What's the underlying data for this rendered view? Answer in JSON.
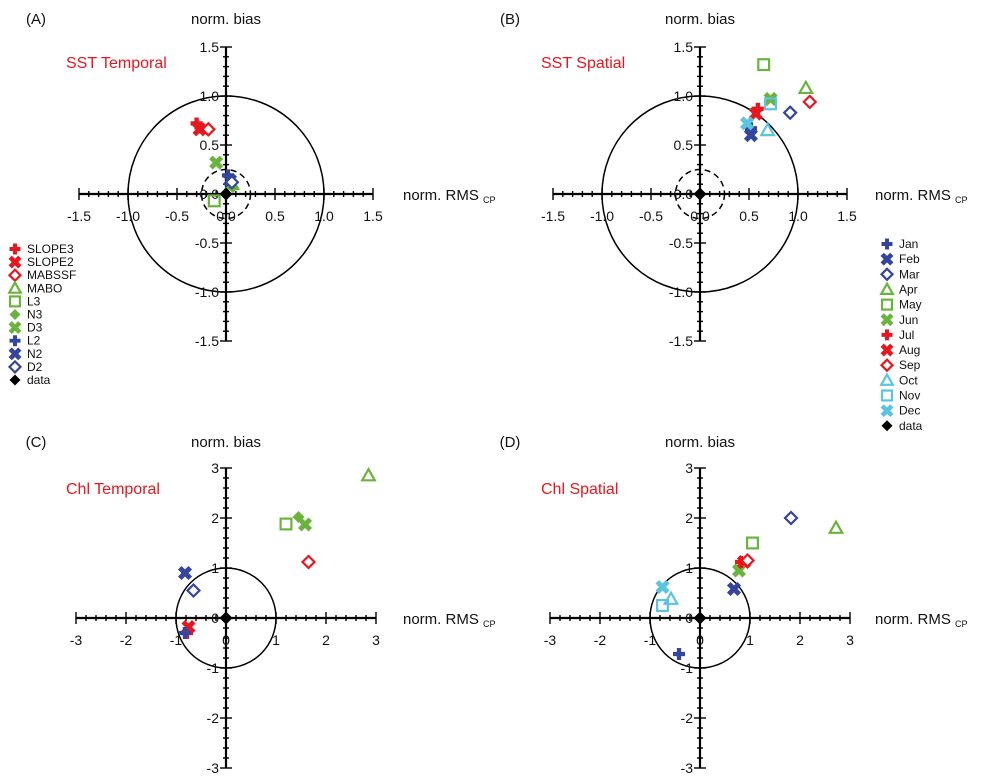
{
  "chart_data": [
    {
      "type": "scatter",
      "panel_label": "(A)",
      "title": "SST Temporal",
      "xlabel": "norm. RMS",
      "xlabel_sub": "CP",
      "ylabel": "norm. bias",
      "xlim": [
        -1.5,
        1.5
      ],
      "ylim": [
        -1.5,
        1.5
      ],
      "ticks": [
        "-1.5",
        "-1.0",
        "-0.5",
        "0.0",
        "0.5",
        "1.0",
        "1.5"
      ],
      "circles": [
        1.0,
        0.25
      ],
      "legend_placement": "left",
      "legend": [
        "SLOPE3",
        "SLOPE2",
        "MABSSF",
        "MABO",
        "L3",
        "N3",
        "D3",
        "L2",
        "N2",
        "D2",
        "data"
      ],
      "series": [
        {
          "name": "SLOPE3",
          "x": [
            -0.3
          ],
          "y": [
            0.72
          ]
        },
        {
          "name": "SLOPE2",
          "x": [
            -0.27
          ],
          "y": [
            0.66
          ]
        },
        {
          "name": "MABSSF",
          "x": [
            -0.18
          ],
          "y": [
            0.66
          ]
        },
        {
          "name": "MABO",
          "x": [
            0.06
          ],
          "y": [
            0.1
          ]
        },
        {
          "name": "L3",
          "x": [
            -0.12
          ],
          "y": [
            -0.07
          ]
        },
        {
          "name": "N3",
          "x": [
            0.07
          ],
          "y": [
            0.07
          ]
        },
        {
          "name": "D3",
          "x": [
            -0.1
          ],
          "y": [
            0.32
          ]
        },
        {
          "name": "L2",
          "x": [
            0.02
          ],
          "y": [
            0.19
          ]
        },
        {
          "name": "N2",
          "x": [
            0.04
          ],
          "y": [
            0.14
          ]
        },
        {
          "name": "D2",
          "x": [
            0.06
          ],
          "y": [
            0.12
          ]
        },
        {
          "name": "data",
          "x": [
            0
          ],
          "y": [
            0
          ]
        }
      ]
    },
    {
      "type": "scatter",
      "panel_label": "(B)",
      "title": "SST Spatial",
      "xlabel": "norm. RMS",
      "xlabel_sub": "CP",
      "ylabel": "norm. bias",
      "xlim": [
        -1.5,
        1.5
      ],
      "ylim": [
        -1.5,
        1.5
      ],
      "ticks": [
        "-1.5",
        "-1.0",
        "-0.5",
        "0.0",
        "0.5",
        "1.0",
        "1.5"
      ],
      "circles": [
        1.0,
        0.25
      ],
      "legend_placement": "right",
      "legend": [
        "Jan",
        "Feb",
        "Mar",
        "Apr",
        "May",
        "Jun",
        "Jul",
        "Aug",
        "Sep",
        "Oct",
        "Nov",
        "Dec",
        "data"
      ],
      "series": [
        {
          "name": "Jan",
          "x": [
            0.52
          ],
          "y": [
            0.67
          ]
        },
        {
          "name": "Feb",
          "x": [
            0.52
          ],
          "y": [
            0.6
          ]
        },
        {
          "name": "Mar",
          "x": [
            0.92
          ],
          "y": [
            0.83
          ]
        },
        {
          "name": "Apr",
          "x": [
            1.08
          ],
          "y": [
            1.08
          ]
        },
        {
          "name": "May",
          "x": [
            0.65
          ],
          "y": [
            1.32
          ]
        },
        {
          "name": "Jun",
          "x": [
            0.72
          ],
          "y": [
            0.97
          ]
        },
        {
          "name": "Jul",
          "x": [
            0.59
          ],
          "y": [
            0.87
          ]
        },
        {
          "name": "Aug",
          "x": [
            0.57
          ],
          "y": [
            0.82
          ]
        },
        {
          "name": "Sep",
          "x": [
            1.12
          ],
          "y": [
            0.94
          ]
        },
        {
          "name": "Oct",
          "x": [
            0.69
          ],
          "y": [
            0.65
          ]
        },
        {
          "name": "Nov",
          "x": [
            0.72
          ],
          "y": [
            0.92
          ]
        },
        {
          "name": "Dec",
          "x": [
            0.48
          ],
          "y": [
            0.72
          ]
        },
        {
          "name": "data",
          "x": [
            0
          ],
          "y": [
            0
          ]
        }
      ]
    },
    {
      "type": "scatter",
      "panel_label": "(C)",
      "title": "Chl Temporal",
      "xlabel": "norm. RMS",
      "xlabel_sub": "CP",
      "ylabel": "norm. bias",
      "xlim": [
        -3,
        3
      ],
      "ylim": [
        -3,
        3
      ],
      "ticks": [
        "-3",
        "-2",
        "-1",
        "0",
        "1",
        "2",
        "3"
      ],
      "circles": [
        1.0
      ],
      "legend_placement": "left",
      "legend": [
        "SLOPE3",
        "SLOPE2",
        "MABSSF",
        "MABO",
        "L3",
        "N3",
        "D3",
        "L2",
        "N2",
        "D2",
        "data"
      ],
      "series": [
        {
          "name": "SLOPE3",
          "x": [
            -0.78
          ],
          "y": [
            -0.3
          ]
        },
        {
          "name": "SLOPE2",
          "x": [
            -0.75
          ],
          "y": [
            -0.18
          ]
        },
        {
          "name": "MABSSF",
          "x": [
            1.65
          ],
          "y": [
            1.12
          ]
        },
        {
          "name": "MABO",
          "x": [
            2.85
          ],
          "y": [
            2.85
          ]
        },
        {
          "name": "L3",
          "x": [
            1.2
          ],
          "y": [
            1.88
          ]
        },
        {
          "name": "N3",
          "x": [
            1.45
          ],
          "y": [
            2.02
          ]
        },
        {
          "name": "D3",
          "x": [
            1.58
          ],
          "y": [
            1.87
          ]
        },
        {
          "name": "L2",
          "x": [
            -0.82
          ],
          "y": [
            -0.3
          ]
        },
        {
          "name": "N2",
          "x": [
            -0.82
          ],
          "y": [
            0.9
          ]
        },
        {
          "name": "D2",
          "x": [
            -0.65
          ],
          "y": [
            0.55
          ]
        },
        {
          "name": "data",
          "x": [
            0
          ],
          "y": [
            0
          ]
        }
      ]
    },
    {
      "type": "scatter",
      "panel_label": "(D)",
      "title": "Chl Spatial",
      "xlabel": "norm. RMS",
      "xlabel_sub": "CP",
      "ylabel": "norm. bias",
      "xlim": [
        -3,
        3
      ],
      "ylim": [
        -3,
        3
      ],
      "ticks": [
        "-3",
        "-2",
        "-1",
        "0",
        "1",
        "2",
        "3"
      ],
      "circles": [
        1.0
      ],
      "legend_placement": "right",
      "legend": [
        "Jan",
        "Feb",
        "Mar",
        "Apr",
        "May",
        "Jun",
        "Jul",
        "Aug",
        "Sep",
        "Oct",
        "Nov",
        "Dec",
        "data"
      ],
      "series": [
        {
          "name": "Jan",
          "x": [
            -0.42
          ],
          "y": [
            -0.72
          ]
        },
        {
          "name": "Feb",
          "x": [
            0.68
          ],
          "y": [
            0.58
          ]
        },
        {
          "name": "Mar",
          "x": [
            1.82
          ],
          "y": [
            2.0
          ]
        },
        {
          "name": "Apr",
          "x": [
            2.72
          ],
          "y": [
            1.8
          ]
        },
        {
          "name": "May",
          "x": [
            1.05
          ],
          "y": [
            1.5
          ]
        },
        {
          "name": "Jun",
          "x": [
            0.78
          ],
          "y": [
            0.95
          ]
        },
        {
          "name": "Jul",
          "x": [
            0.82
          ],
          "y": [
            1.12
          ]
        },
        {
          "name": "Aug",
          "x": [
            0.88
          ],
          "y": [
            1.12
          ]
        },
        {
          "name": "Sep",
          "x": [
            0.95
          ],
          "y": [
            1.15
          ]
        },
        {
          "name": "Oct",
          "x": [
            -0.58
          ],
          "y": [
            0.38
          ]
        },
        {
          "name": "Nov",
          "x": [
            -0.75
          ],
          "y": [
            0.25
          ]
        },
        {
          "name": "Dec",
          "x": [
            -0.75
          ],
          "y": [
            0.62
          ]
        },
        {
          "name": "data",
          "x": [
            0
          ],
          "y": [
            0
          ]
        }
      ]
    }
  ],
  "styles": {
    "colors": {
      "red": "#e8161e",
      "green": "#6ab43e",
      "blue": "#34459e",
      "cyan": "#5bc4e0",
      "black": "#000000",
      "title": "#e8161e"
    },
    "markers": {
      "SLOPE3": [
        "plus",
        "red"
      ],
      "SLOPE2": [
        "xfill",
        "red"
      ],
      "MABSSF": [
        "diamond",
        "red"
      ],
      "MABO": [
        "triangle",
        "green"
      ],
      "L3": [
        "square",
        "green"
      ],
      "N3": [
        "diamondfill",
        "green"
      ],
      "D3": [
        "xfill",
        "green"
      ],
      "L2": [
        "plus",
        "blue"
      ],
      "N2": [
        "xfill",
        "blue"
      ],
      "D2": [
        "diamond",
        "blue"
      ],
      "data": [
        "diamondfill",
        "black"
      ],
      "Jan": [
        "plus",
        "blue"
      ],
      "Feb": [
        "xfill",
        "blue"
      ],
      "Mar": [
        "diamond",
        "blue"
      ],
      "Apr": [
        "triangle",
        "green"
      ],
      "May": [
        "square",
        "green"
      ],
      "Jun": [
        "xfill",
        "green"
      ],
      "Jul": [
        "plus",
        "red"
      ],
      "Aug": [
        "xfill",
        "red"
      ],
      "Sep": [
        "diamond",
        "red"
      ],
      "Oct": [
        "triangle",
        "cyan"
      ],
      "Nov": [
        "square",
        "cyan"
      ],
      "Dec": [
        "xfill",
        "cyan"
      ]
    }
  }
}
